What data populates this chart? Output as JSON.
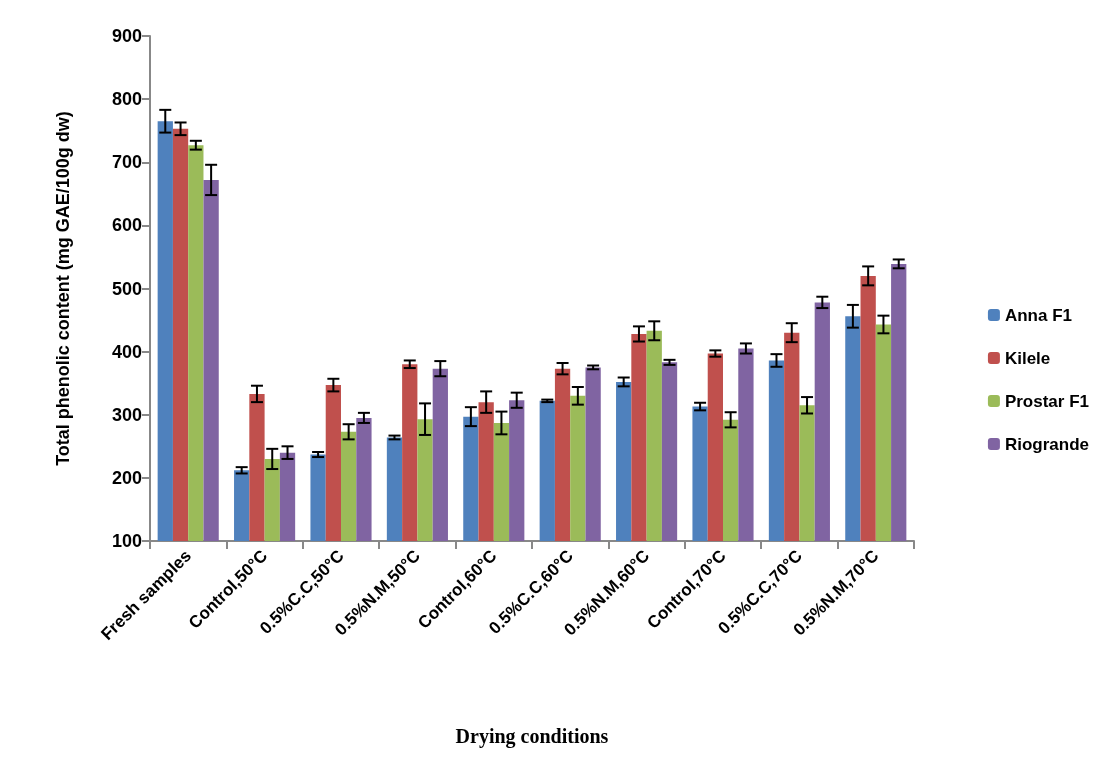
{
  "chart_data": {
    "type": "bar",
    "xlabel": "Drying conditions",
    "ylabel": "Total phenolic content (mg GAE/100g dw)",
    "categories": [
      "Fresh samples",
      "Control,50°C",
      "0.5%C.C,50°C",
      "0.5%N.M,50°C",
      "Control,60°C",
      "0.5%C.C,60°C",
      "0.5%N.M,60°C",
      "Control,70°C",
      "0.5%C.C,70°C",
      "0.5%N.M,70°C"
    ],
    "series": [
      {
        "name": "Anna F1",
        "color": "#4f81bd",
        "values": [
          765,
          212,
          237,
          264,
          297,
          322,
          352,
          313,
          386,
          456
        ],
        "errors": [
          18,
          5,
          4,
          3,
          15,
          2,
          7,
          6,
          10,
          18
        ]
      },
      {
        "name": "Kilele",
        "color": "#c0504d",
        "values": [
          753,
          333,
          347,
          380,
          320,
          373,
          428,
          397,
          430,
          520
        ],
        "errors": [
          10,
          13,
          10,
          6,
          17,
          9,
          12,
          5,
          15,
          15
        ]
      },
      {
        "name": "Prostar F1",
        "color": "#9bbb59",
        "values": [
          727,
          230,
          273,
          293,
          287,
          330,
          433,
          292,
          315,
          443
        ],
        "errors": [
          7,
          16,
          12,
          25,
          18,
          14,
          15,
          12,
          13,
          14
        ]
      },
      {
        "name": "Riogrande",
        "color": "#8064a2",
        "values": [
          672,
          240,
          295,
          373,
          323,
          375,
          383,
          405,
          478,
          539
        ],
        "errors": [
          24,
          10,
          8,
          12,
          12,
          3,
          4,
          8,
          9,
          7
        ]
      }
    ],
    "ylim": [
      100,
      900
    ],
    "yticks": [
      100,
      200,
      300,
      400,
      500,
      600,
      700,
      800,
      900
    ],
    "grid": false,
    "legend": "right"
  }
}
